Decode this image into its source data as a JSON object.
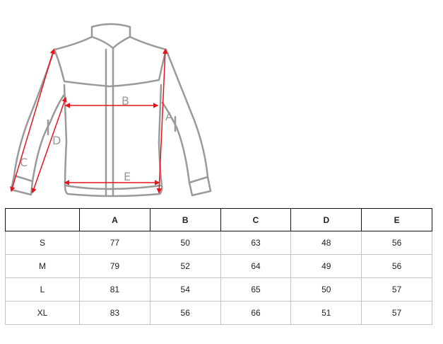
{
  "diagram": {
    "labels": [
      "A",
      "B",
      "C",
      "D",
      "E"
    ],
    "garment_stroke": "#999999",
    "arrow_color": "#e8141b"
  },
  "table": {
    "headers": [
      "",
      "A",
      "B",
      "C",
      "D",
      "E"
    ],
    "rows": [
      [
        "S",
        "77",
        "50",
        "63",
        "48",
        "56"
      ],
      [
        "M",
        "79",
        "52",
        "64",
        "49",
        "56"
      ],
      [
        "L",
        "81",
        "54",
        "65",
        "50",
        "57"
      ],
      [
        "XL",
        "83",
        "56",
        "66",
        "51",
        "57"
      ]
    ]
  }
}
